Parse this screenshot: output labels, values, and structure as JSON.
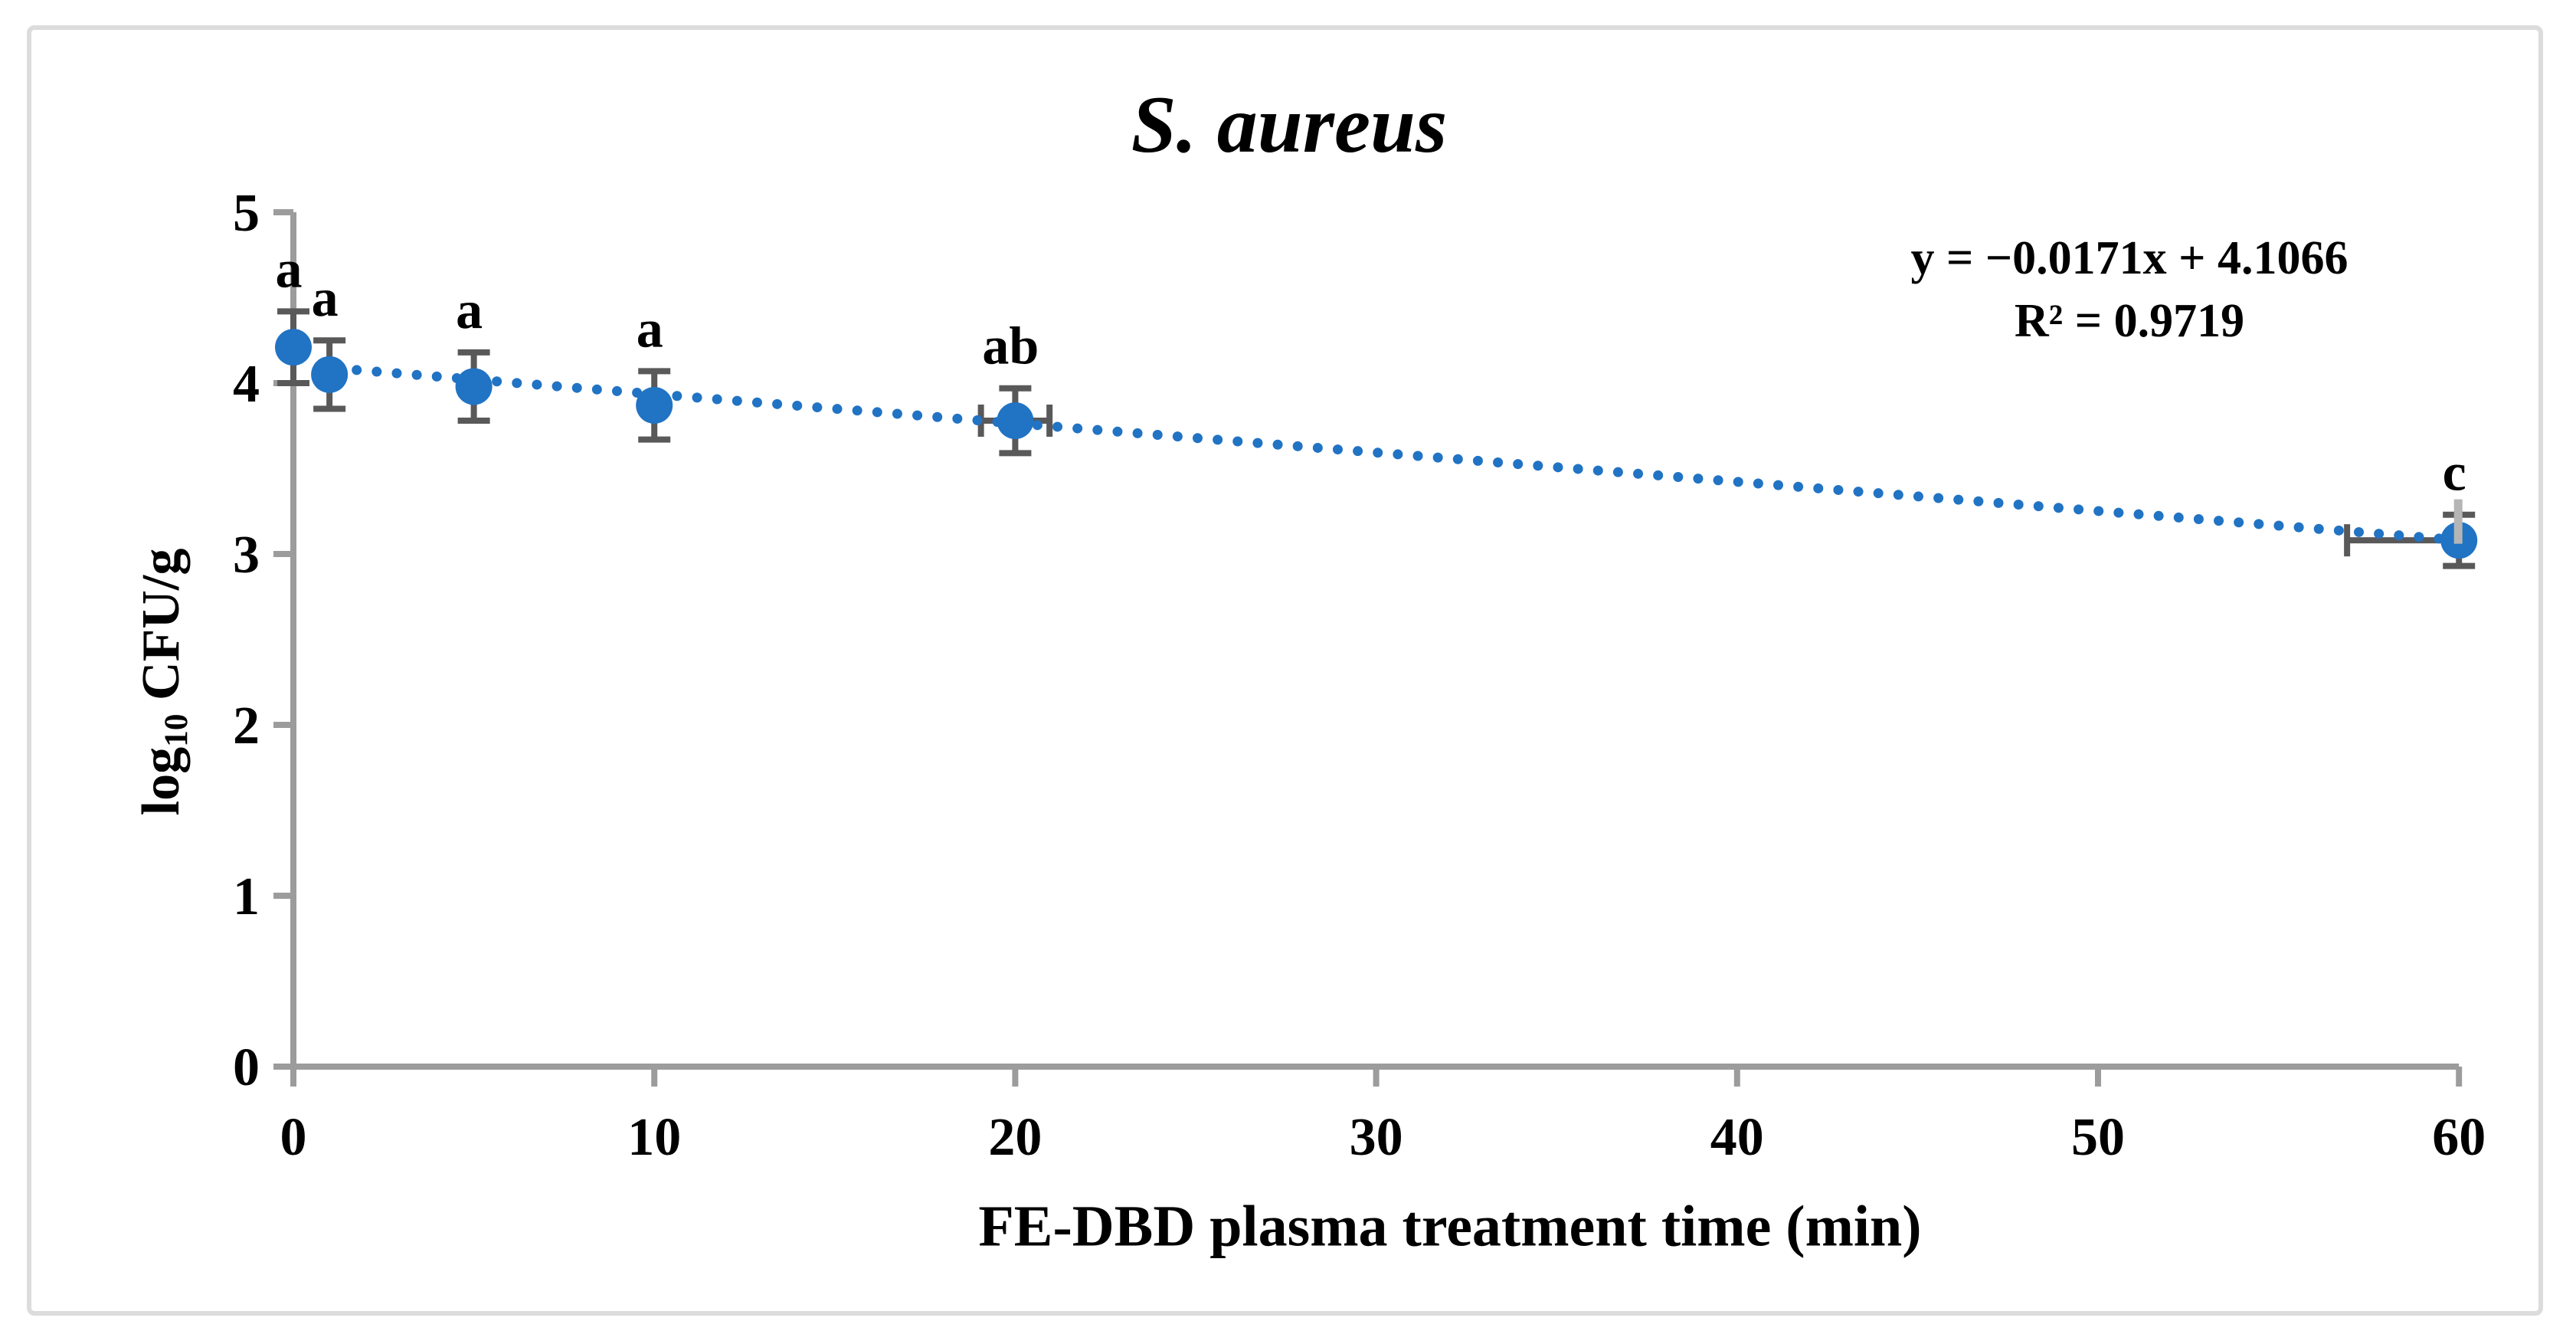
{
  "figure": {
    "title": "S. aureus",
    "equation_line1": "y = −0.0171x + 4.1066",
    "equation_line2": "R² = 0.9719",
    "x_axis_title": "FE-DBD plasma treatment time (min)",
    "y_axis_title": {
      "prefix": "log",
      "subscript": "10",
      "suffix": " CFU/g"
    }
  },
  "chart_data": {
    "type": "scatter",
    "title": "S. aureus",
    "xlabel": "FE-DBD plasma treatment time (min)",
    "ylabel": "log10 CFU/g",
    "xlim": [
      0,
      60
    ],
    "ylim": [
      0,
      5
    ],
    "x_ticks": [
      0,
      10,
      20,
      30,
      40,
      50,
      60
    ],
    "y_ticks": [
      0,
      1,
      2,
      3,
      4,
      5
    ],
    "grid": false,
    "legend": "none",
    "points": [
      {
        "x": 0,
        "y": 4.21,
        "yerr": 0.21,
        "xerr_minus": 0,
        "xerr_plus": 0,
        "sig_label": "a"
      },
      {
        "x": 1,
        "y": 4.05,
        "yerr": 0.2,
        "xerr_minus": 0,
        "xerr_plus": 0,
        "sig_label": "a"
      },
      {
        "x": 5,
        "y": 3.98,
        "yerr": 0.2,
        "xerr_minus": 0,
        "xerr_plus": 0,
        "sig_label": "a"
      },
      {
        "x": 10,
        "y": 3.87,
        "yerr": 0.2,
        "xerr_minus": 0,
        "xerr_plus": 0,
        "sig_label": "a"
      },
      {
        "x": 20,
        "y": 3.78,
        "yerr": 0.19,
        "xerr_minus": 0.95,
        "xerr_plus": 0.95,
        "sig_label": "ab"
      },
      {
        "x": 60,
        "y": 3.08,
        "yerr": 0.15,
        "xerr_minus": 3.1,
        "xerr_plus": 0,
        "sig_label": "c"
      }
    ],
    "trendline": {
      "style": "dotted",
      "slope": -0.0171,
      "intercept": 4.1066,
      "x_start": 1.2,
      "x_end": 60,
      "equation": "y = −0.0171x + 4.1066",
      "r_squared": "R² = 0.9719"
    },
    "colors": {
      "marker": "#2173c4",
      "trendline": "#2173c4",
      "error_bar": "#595959",
      "axis": "#9c9c9c",
      "artifact_line": "#b5b5b5",
      "text": "#000000",
      "border": "#dcdcdc",
      "background": "#ffffff"
    }
  }
}
